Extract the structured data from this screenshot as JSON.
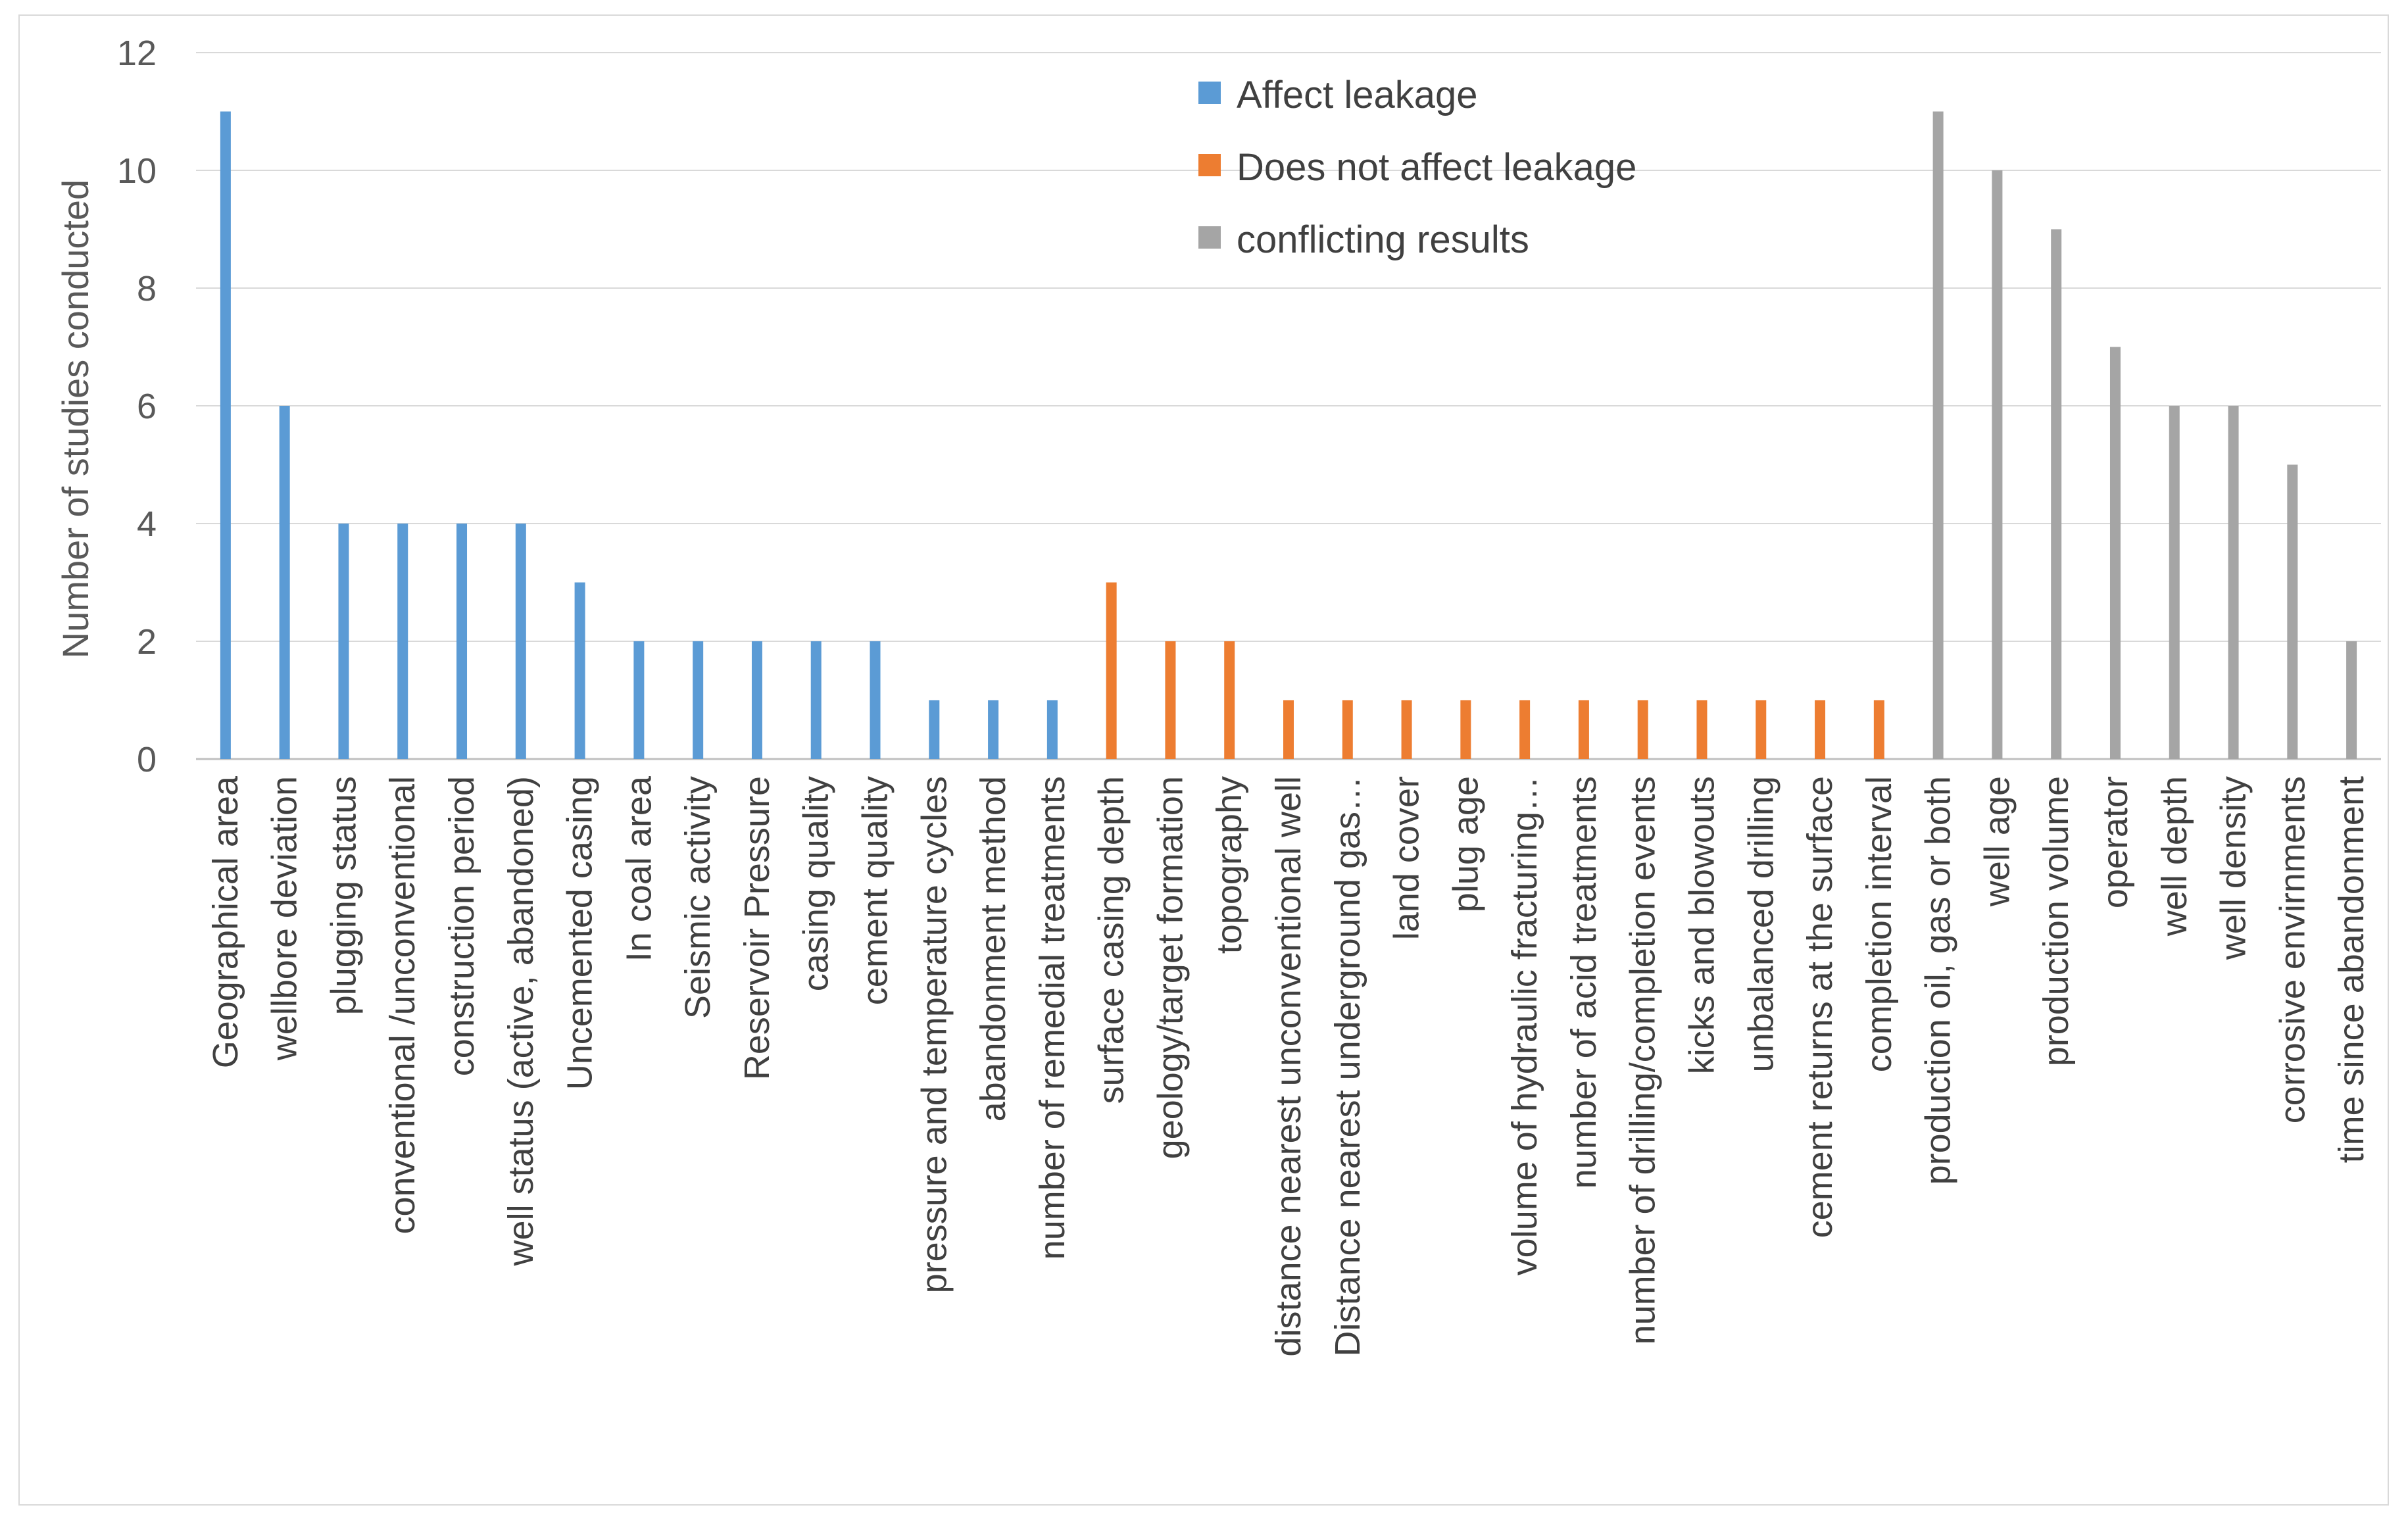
{
  "chart_data": {
    "type": "bar",
    "title": "",
    "xlabel": "",
    "ylabel": "Number of studies conducted",
    "ylim": [
      0,
      12
    ],
    "yticks": [
      0,
      2,
      4,
      6,
      8,
      10,
      12
    ],
    "grid": true,
    "legend_position": "top-center",
    "series": [
      {
        "name": "Affect leakage",
        "color": "#5B9BD5"
      },
      {
        "name": "Does not affect leakage",
        "color": "#ED7D31"
      },
      {
        "name": "conflicting results",
        "color": "#A5A5A5"
      }
    ],
    "categories": [
      "Geographical area",
      "wellbore deviation",
      "plugging status",
      "conventional /unconventional",
      "construction period",
      "well status (active, abandoned)",
      "Uncemented casing",
      "In coal area",
      "Seismic activity",
      "Reservoir Pressure",
      "casing quality",
      "cement quality",
      "pressure and temperature cycles",
      "abandonment method",
      "number of remedial treatments",
      "surface casing depth",
      "geology/target formation",
      "topography",
      "distance nearest unconventional well",
      "Distance nearest underground gas…",
      "land cover",
      "plug age",
      "volume of hydraulic fracturing…",
      "number of acid treatments",
      "number of drilling/completion events",
      "kicks and blowouts",
      "unbalanced drilling",
      "cement returns at the surface",
      "completion interval",
      "production oil, gas or both",
      "well age",
      "production volume",
      "operator",
      "well depth",
      "well density",
      "corrosive envirnments",
      "time since abandonment"
    ],
    "values": [
      11,
      6,
      4,
      4,
      4,
      4,
      3,
      2,
      2,
      2,
      2,
      2,
      1,
      1,
      1,
      3,
      2,
      2,
      1,
      1,
      1,
      1,
      1,
      1,
      1,
      1,
      1,
      1,
      1,
      11,
      10,
      9,
      7,
      6,
      6,
      5,
      2
    ],
    "series_index": [
      0,
      0,
      0,
      0,
      0,
      0,
      0,
      0,
      0,
      0,
      0,
      0,
      0,
      0,
      0,
      1,
      1,
      1,
      1,
      1,
      1,
      1,
      1,
      1,
      1,
      1,
      1,
      1,
      1,
      2,
      2,
      2,
      2,
      2,
      2,
      2,
      2
    ]
  }
}
